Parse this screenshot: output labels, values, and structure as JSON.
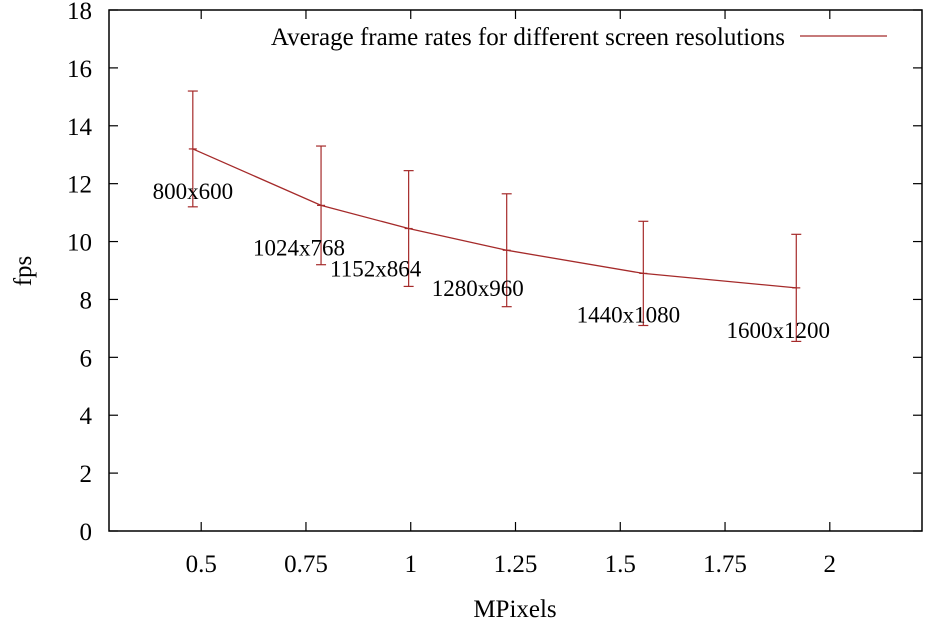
{
  "chart_data": {
    "type": "line",
    "xlabel": "MPixels",
    "ylabel": "fps",
    "xlim": [
      0.28,
      2.22
    ],
    "ylim": [
      0,
      18
    ],
    "x_ticks": [
      0.5,
      0.75,
      1,
      1.25,
      1.5,
      1.75,
      2
    ],
    "x_tick_labels": [
      "0.5",
      "0.75",
      "1",
      "1.25",
      "1.5",
      "1.75",
      "2"
    ],
    "y_ticks": [
      0,
      2,
      4,
      6,
      8,
      10,
      12,
      14,
      16,
      18
    ],
    "y_tick_labels": [
      "0",
      "2",
      "4",
      "6",
      "8",
      "10",
      "12",
      "14",
      "16",
      "18"
    ],
    "grid": false,
    "legend": "top-right",
    "series": [
      {
        "name": "Average frame rates for different screen resolutions",
        "color": "#a52a2a",
        "points": [
          {
            "label": "800x600",
            "x": 0.48,
            "y": 13.2,
            "err_low": 11.2,
            "err_high": 15.2
          },
          {
            "label": "1024x768",
            "x": 0.786,
            "y": 11.25,
            "err_low": 9.2,
            "err_high": 13.3
          },
          {
            "label": "1152x864",
            "x": 0.995,
            "y": 10.45,
            "err_low": 8.45,
            "err_high": 12.45
          },
          {
            "label": "1280x960",
            "x": 1.229,
            "y": 9.7,
            "err_low": 7.75,
            "err_high": 11.65
          },
          {
            "label": "1440x1080",
            "x": 1.555,
            "y": 8.9,
            "err_low": 7.1,
            "err_high": 10.7
          },
          {
            "label": "1600x1200",
            "x": 1.92,
            "y": 8.4,
            "err_low": 6.55,
            "err_high": 10.25
          }
        ]
      }
    ]
  }
}
